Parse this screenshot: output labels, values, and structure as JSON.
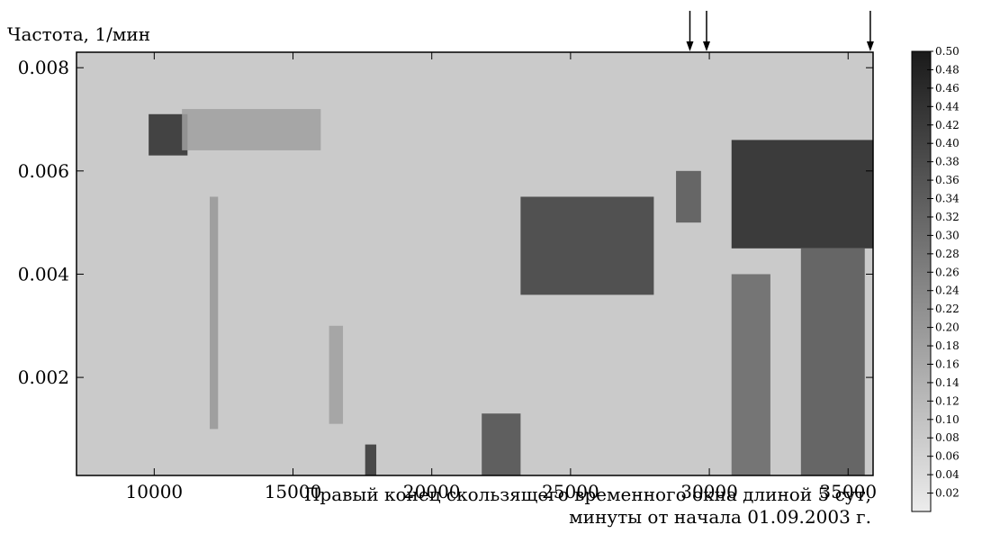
{
  "chart_data": {
    "type": "heatmap",
    "title": "",
    "ylabel": "Частота, 1/мин",
    "xlabel_line1": "Правый конец скользящего временного окна длиной 5 сут,",
    "xlabel_line2": "минуты от начала 01.09.2003 г.",
    "xlim": [
      7200,
      35900
    ],
    "ylim": [
      0.0001,
      0.0083
    ],
    "x_ticks": [
      10000,
      15000,
      20000,
      25000,
      30000,
      35000
    ],
    "x_tick_labels": [
      "10000",
      "15000",
      "20000",
      "25000",
      "30000",
      "35000"
    ],
    "y_ticks": [
      0.002,
      0.004,
      0.006,
      0.008
    ],
    "y_tick_labels": [
      "0.002",
      "0.004",
      "0.006",
      "0.008"
    ],
    "arrows_x": [
      29300,
      29900,
      35800
    ],
    "colorbar": {
      "min": 0.0,
      "max": 0.5,
      "ticks": [
        0.02,
        0.04,
        0.06,
        0.08,
        0.1,
        0.12,
        0.14,
        0.16,
        0.18,
        0.2,
        0.22,
        0.24,
        0.26,
        0.28,
        0.3,
        0.32,
        0.34,
        0.36,
        0.38,
        0.4,
        0.42,
        0.44,
        0.46,
        0.48,
        0.5
      ],
      "tick_labels": [
        "0.02",
        "0.04",
        "0.06",
        "0.08",
        "0.10",
        "0.12",
        "0.14",
        "0.16",
        "0.18",
        "0.20",
        "0.22",
        "0.24",
        "0.26",
        "0.28",
        "0.30",
        "0.32",
        "0.34",
        "0.36",
        "0.38",
        "0.40",
        "0.42",
        "0.44",
        "0.46",
        "0.48",
        "0.50"
      ],
      "color_low": "#ececec",
      "color_high": "#1a1a1a"
    },
    "background_level": 0.08,
    "features": [
      {
        "x": [
          9800,
          11200
        ],
        "y": [
          0.0063,
          0.0071
        ],
        "value": 0.46
      },
      {
        "x": [
          11000,
          16000
        ],
        "y": [
          0.0064,
          0.0072
        ],
        "value": 0.18
      },
      {
        "x": [
          12000,
          12300
        ],
        "y": [
          0.001,
          0.0055
        ],
        "value": 0.2
      },
      {
        "x": [
          17600,
          18000
        ],
        "y": [
          0.0001,
          0.0007
        ],
        "value": 0.44
      },
      {
        "x": [
          21800,
          23200
        ],
        "y": [
          0.0001,
          0.0013
        ],
        "value": 0.38
      },
      {
        "x": [
          23200,
          28000
        ],
        "y": [
          0.0036,
          0.0055
        ],
        "value": 0.42
      },
      {
        "x": [
          28800,
          29700
        ],
        "y": [
          0.005,
          0.006
        ],
        "value": 0.36
      },
      {
        "x": [
          30800,
          35900
        ],
        "y": [
          0.0045,
          0.0066
        ],
        "value": 0.48
      },
      {
        "x": [
          30800,
          32200
        ],
        "y": [
          0.0001,
          0.004
        ],
        "value": 0.32
      },
      {
        "x": [
          33300,
          35600
        ],
        "y": [
          0.0001,
          0.0045
        ],
        "value": 0.36
      },
      {
        "x": [
          16300,
          16800
        ],
        "y": [
          0.0011,
          0.003
        ],
        "value": 0.18
      }
    ]
  }
}
